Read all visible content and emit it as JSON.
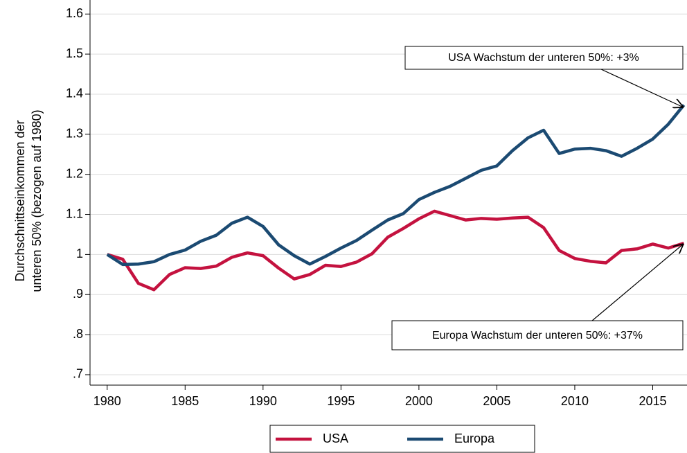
{
  "chart_data": {
    "type": "line",
    "y_label_lines": [
      "Durchschnittseinkommen der",
      "unteren 50% (bezogen auf 1980)"
    ],
    "annotations": [
      "USA Wachstum der unteren 50%: +3%",
      "Europa Wachstum der unteren 50%: +37%"
    ],
    "x": [
      1980,
      1981,
      1982,
      1983,
      1984,
      1985,
      1986,
      1987,
      1988,
      1989,
      1990,
      1991,
      1992,
      1993,
      1994,
      1995,
      1996,
      1997,
      1998,
      1999,
      2000,
      2001,
      2002,
      2003,
      2004,
      2005,
      2006,
      2007,
      2008,
      2009,
      2010,
      2011,
      2012,
      2013,
      2014,
      2015,
      2016,
      2017
    ],
    "series": [
      {
        "name": "USA",
        "color": "#c4123f",
        "values": [
          1.0,
          0.988,
          0.928,
          0.912,
          0.95,
          0.967,
          0.965,
          0.971,
          0.993,
          1.004,
          0.997,
          0.966,
          0.939,
          0.95,
          0.973,
          0.97,
          0.981,
          1.002,
          1.043,
          1.065,
          1.089,
          1.108,
          1.097,
          1.086,
          1.09,
          1.088,
          1.091,
          1.093,
          1.067,
          1.01,
          0.99,
          0.983,
          0.979,
          1.01,
          1.014,
          1.026,
          1.016,
          1.028
        ]
      },
      {
        "name": "Europa",
        "color": "#1b4a72",
        "values": [
          1.0,
          0.975,
          0.976,
          0.982,
          1.0,
          1.011,
          1.033,
          1.048,
          1.078,
          1.093,
          1.07,
          1.024,
          0.997,
          0.976,
          0.995,
          1.016,
          1.035,
          1.061,
          1.086,
          1.102,
          1.137,
          1.155,
          1.17,
          1.19,
          1.21,
          1.221,
          1.259,
          1.291,
          1.31,
          1.252,
          1.263,
          1.265,
          1.259,
          1.245,
          1.265,
          1.288,
          1.325,
          1.373
        ]
      }
    ],
    "xlim": [
      1978.9,
      2017.2
    ],
    "xticks": [
      1980,
      1985,
      1990,
      1995,
      2000,
      2005,
      2010,
      2015
    ],
    "ylim": [
      0.674,
      1.635
    ],
    "yticks": [
      {
        "value": 0.7,
        "label": ".7"
      },
      {
        "value": 0.8,
        "label": ".8"
      },
      {
        "value": 0.9,
        "label": ".9"
      },
      1,
      1.1,
      1.2,
      1.3,
      1.4,
      1.5,
      1.6
    ],
    "grid": true
  }
}
